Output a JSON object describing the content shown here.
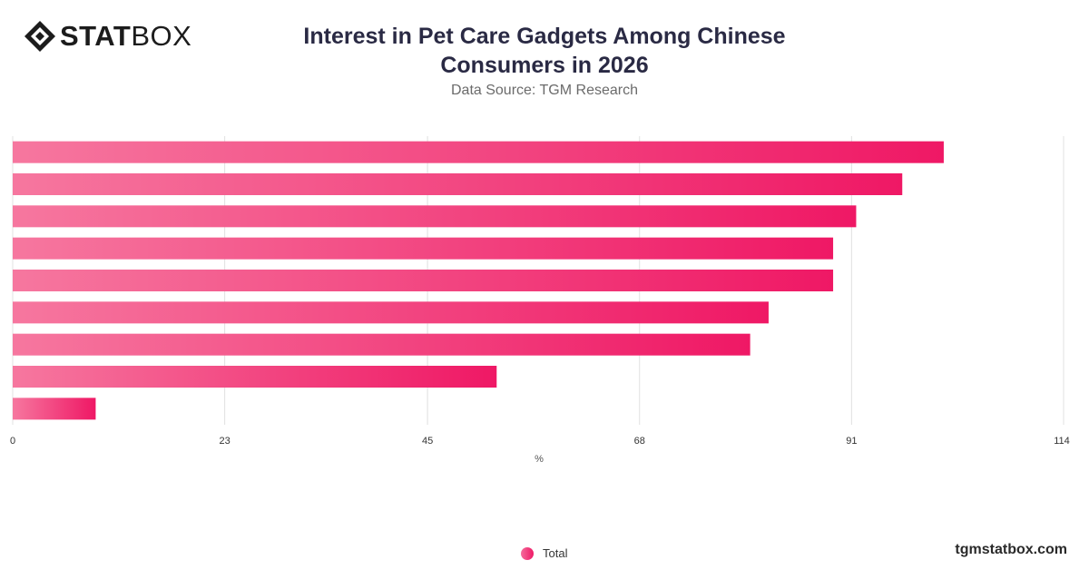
{
  "brand": {
    "logo_stat": "STAT",
    "logo_box": "BOX",
    "footer_site": "tgmstatbox.com"
  },
  "title_line1": "Interest in Pet Care Gadgets Among Chinese",
  "title_line2": "Consumers in 2026",
  "subtitle": "Data Source: TGM Research",
  "colors": {
    "bar_start": "#f6779f",
    "bar_end": "#ef1865",
    "grid": "#e0e0e0",
    "tick": "#333333"
  },
  "chart_data": {
    "type": "bar",
    "orientation": "horizontal",
    "title": "Interest in Pet Care Gadgets Among Chinese Consumers in 2026",
    "xlabel": "%",
    "xticks": [
      "0",
      "23",
      "45",
      "68",
      "91",
      "114"
    ],
    "xlim": [
      0,
      114
    ],
    "grid": true,
    "legend_position": "bottom-center",
    "series": [
      {
        "name": "Total",
        "values": [
          101,
          96.5,
          91.5,
          89,
          89,
          82,
          80,
          52.5,
          9
        ]
      }
    ]
  }
}
